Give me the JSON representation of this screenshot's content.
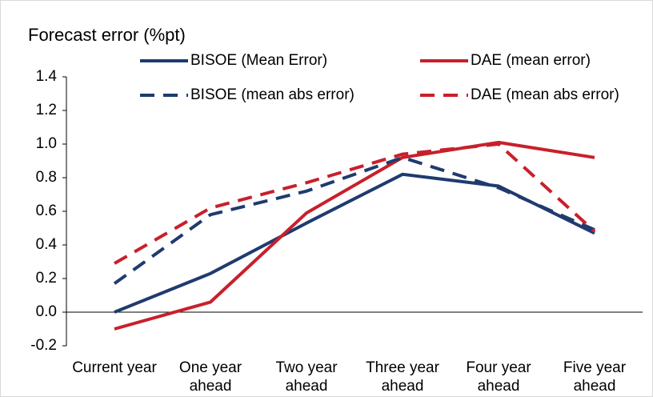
{
  "chart_data": {
    "type": "line",
    "title": "Forecast error (%pt)",
    "categories": [
      "Current year",
      "One year ahead",
      "Two year ahead",
      "Three year ahead",
      "Four year ahead",
      "Five year ahead"
    ],
    "series": [
      {
        "name": "BISOE (Mean Error)",
        "color": "#1f3b6e",
        "dashed": false,
        "values": [
          0.0,
          0.23,
          0.53,
          0.82,
          0.75,
          0.47
        ]
      },
      {
        "name": "DAE (mean error)",
        "color": "#c8202b",
        "dashed": false,
        "values": [
          -0.1,
          0.06,
          0.59,
          0.92,
          1.01,
          0.92
        ]
      },
      {
        "name": "BISOE (mean abs error)",
        "color": "#1f3b6e",
        "dashed": true,
        "values": [
          0.17,
          0.58,
          0.72,
          0.92,
          0.74,
          0.49
        ]
      },
      {
        "name": "DAE (mean abs error)",
        "color": "#c8202b",
        "dashed": true,
        "values": [
          0.29,
          0.62,
          0.77,
          0.94,
          1.0,
          0.48
        ]
      }
    ],
    "ylim": [
      -0.2,
      1.4
    ],
    "yticks": [
      -0.2,
      {
        "value": 0,
        "label": "0.0"
      },
      0.2,
      0.4,
      0.6,
      0.8,
      {
        "value": 1,
        "label": "1.0"
      },
      1.2,
      1.4
    ]
  }
}
